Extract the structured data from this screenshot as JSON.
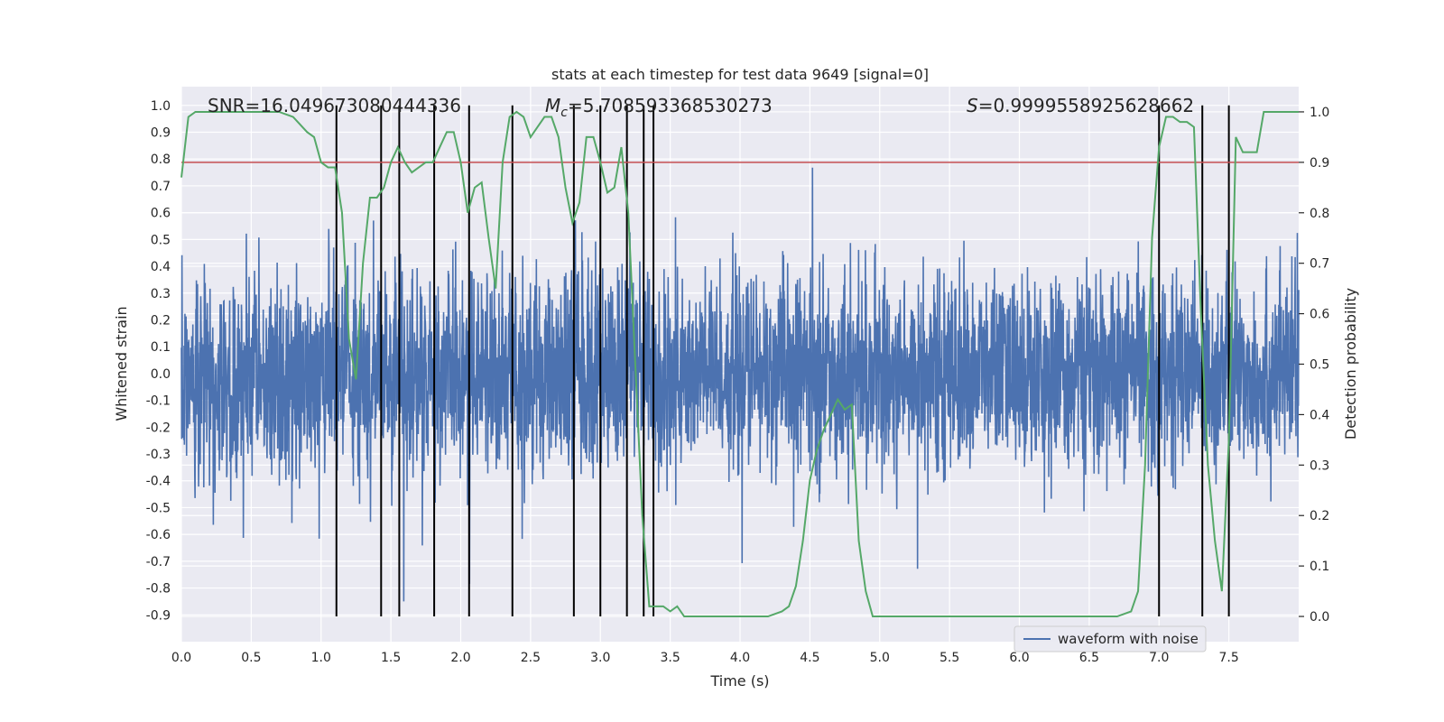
{
  "chart_data": {
    "type": "line",
    "title": "stats at each timestep for test data 9649 [signal=0]",
    "xlabel": "Time (s)",
    "ylabel_left": "Whitened strain",
    "ylabel_right": "Detection probability",
    "xlim": [
      0.0,
      8.0
    ],
    "ylim_left": [
      -1.0,
      1.07
    ],
    "ylim_right": [
      -0.05,
      1.05
    ],
    "x_ticks": [
      0.0,
      0.5,
      1.0,
      1.5,
      2.0,
      2.5,
      3.0,
      3.5,
      4.0,
      4.5,
      5.0,
      5.5,
      6.0,
      6.5,
      7.0,
      7.5
    ],
    "x_tick_labels": [
      "0.0",
      "0.5",
      "1.0",
      "1.5",
      "2.0",
      "2.5",
      "3.0",
      "3.5",
      "4.0",
      "4.5",
      "5.0",
      "5.5",
      "6.0",
      "6.5",
      "7.0",
      "7.5"
    ],
    "y_left_ticks": [
      1.0,
      0.9,
      0.8,
      0.7,
      0.6,
      0.5,
      0.4,
      0.3,
      0.2,
      0.1,
      0.0,
      -0.1,
      -0.2,
      -0.3,
      -0.4,
      -0.5,
      -0.6,
      -0.7,
      -0.8,
      -0.9
    ],
    "y_left_tick_labels": [
      "1.0",
      "0.9",
      "0.8",
      "0.7",
      "0.6",
      "0.5",
      "0.4",
      "0.3",
      "0.2",
      "0.1",
      "0.0",
      "-0.1",
      "-0.2",
      "-0.3",
      "-0.4",
      "-0.5",
      "-0.6",
      "-0.7",
      "-0.8",
      "-0.9"
    ],
    "y_right_ticks": [
      1.0,
      0.9,
      0.8,
      0.7,
      0.6,
      0.5,
      0.4,
      0.3,
      0.2,
      0.1,
      0.0
    ],
    "y_right_tick_labels": [
      "1.0",
      "0.9",
      "0.8",
      "0.7",
      "0.6",
      "0.5",
      "0.4",
      "0.3",
      "0.2",
      "0.1",
      "0.0"
    ],
    "annotations": {
      "snr": "SNR=16.049673080444336",
      "mc_symbol": "M",
      "mc_sub": "c",
      "mc_value": "=5.708593368530273",
      "s_symbol": "S",
      "s_value": "=0.9999558925628662"
    },
    "legend": {
      "label": "waveform with noise",
      "placement": "lower-right"
    },
    "threshold": {
      "value_right": 0.9,
      "color": "#c44e52"
    },
    "vertical_lines_x": [
      1.11,
      1.43,
      1.56,
      1.81,
      2.06,
      2.37,
      2.81,
      3.0,
      3.19,
      3.31,
      3.38,
      7.0,
      7.31,
      7.5
    ],
    "waveform": {
      "color": "#4c72b0",
      "samples": 4096,
      "seed": 9649,
      "envelope_regions": [
        {
          "x": [
            0.0,
            3.5
          ],
          "max": 0.85,
          "typ": 0.45
        },
        {
          "x": [
            3.5,
            8.0
          ],
          "max": 0.95,
          "typ": 0.42
        }
      ]
    },
    "probability_series": {
      "color": "#55a868",
      "x": [
        0.0,
        0.05,
        0.1,
        0.15,
        0.2,
        0.3,
        0.4,
        0.5,
        0.6,
        0.7,
        0.8,
        0.9,
        0.95,
        1.0,
        1.05,
        1.1,
        1.15,
        1.2,
        1.25,
        1.3,
        1.35,
        1.4,
        1.45,
        1.5,
        1.55,
        1.6,
        1.65,
        1.7,
        1.75,
        1.8,
        1.85,
        1.9,
        1.95,
        2.0,
        2.05,
        2.1,
        2.15,
        2.2,
        2.25,
        2.3,
        2.35,
        2.4,
        2.45,
        2.5,
        2.55,
        2.6,
        2.65,
        2.7,
        2.75,
        2.8,
        2.85,
        2.9,
        2.95,
        3.0,
        3.05,
        3.1,
        3.15,
        3.2,
        3.25,
        3.3,
        3.35,
        3.4,
        3.45,
        3.5,
        3.55,
        3.6,
        3.7,
        3.8,
        3.9,
        4.0,
        4.1,
        4.2,
        4.3,
        4.35,
        4.4,
        4.45,
        4.5,
        4.55,
        4.6,
        4.65,
        4.7,
        4.75,
        4.8,
        4.85,
        4.9,
        4.95,
        5.0,
        5.1,
        5.2,
        5.3,
        5.4,
        5.5,
        5.6,
        5.8,
        6.0,
        6.2,
        6.4,
        6.5,
        6.6,
        6.7,
        6.8,
        6.85,
        6.9,
        6.95,
        7.0,
        7.05,
        7.1,
        7.15,
        7.2,
        7.25,
        7.3,
        7.35,
        7.4,
        7.45,
        7.5,
        7.55,
        7.6,
        7.65,
        7.7,
        7.75,
        7.8,
        7.85,
        7.9,
        7.95,
        8.0
      ],
      "y": [
        0.87,
        0.99,
        1.0,
        1.0,
        1.0,
        1.0,
        1.0,
        1.0,
        1.0,
        1.0,
        0.99,
        0.96,
        0.95,
        0.9,
        0.89,
        0.89,
        0.8,
        0.55,
        0.47,
        0.7,
        0.83,
        0.83,
        0.85,
        0.9,
        0.93,
        0.9,
        0.88,
        0.89,
        0.9,
        0.9,
        0.93,
        0.96,
        0.96,
        0.9,
        0.8,
        0.85,
        0.86,
        0.75,
        0.65,
        0.9,
        0.99,
        1.0,
        0.99,
        0.95,
        0.97,
        0.99,
        0.99,
        0.95,
        0.85,
        0.78,
        0.82,
        0.95,
        0.95,
        0.9,
        0.84,
        0.85,
        0.93,
        0.8,
        0.5,
        0.2,
        0.02,
        0.02,
        0.02,
        0.01,
        0.02,
        0.0,
        0.0,
        0.0,
        0.0,
        0.0,
        0.0,
        0.0,
        0.01,
        0.02,
        0.06,
        0.15,
        0.27,
        0.33,
        0.37,
        0.4,
        0.43,
        0.41,
        0.42,
        0.15,
        0.05,
        0.0,
        0.0,
        0.0,
        0.0,
        0.0,
        0.0,
        0.0,
        0.0,
        0.0,
        0.0,
        0.0,
        0.0,
        0.0,
        0.0,
        0.0,
        0.01,
        0.05,
        0.3,
        0.75,
        0.93,
        0.99,
        0.99,
        0.98,
        0.98,
        0.97,
        0.6,
        0.3,
        0.15,
        0.05,
        0.35,
        0.95,
        0.92,
        0.92,
        0.92,
        1.0,
        1.0,
        1.0,
        1.0,
        1.0,
        1.0
      ]
    }
  }
}
